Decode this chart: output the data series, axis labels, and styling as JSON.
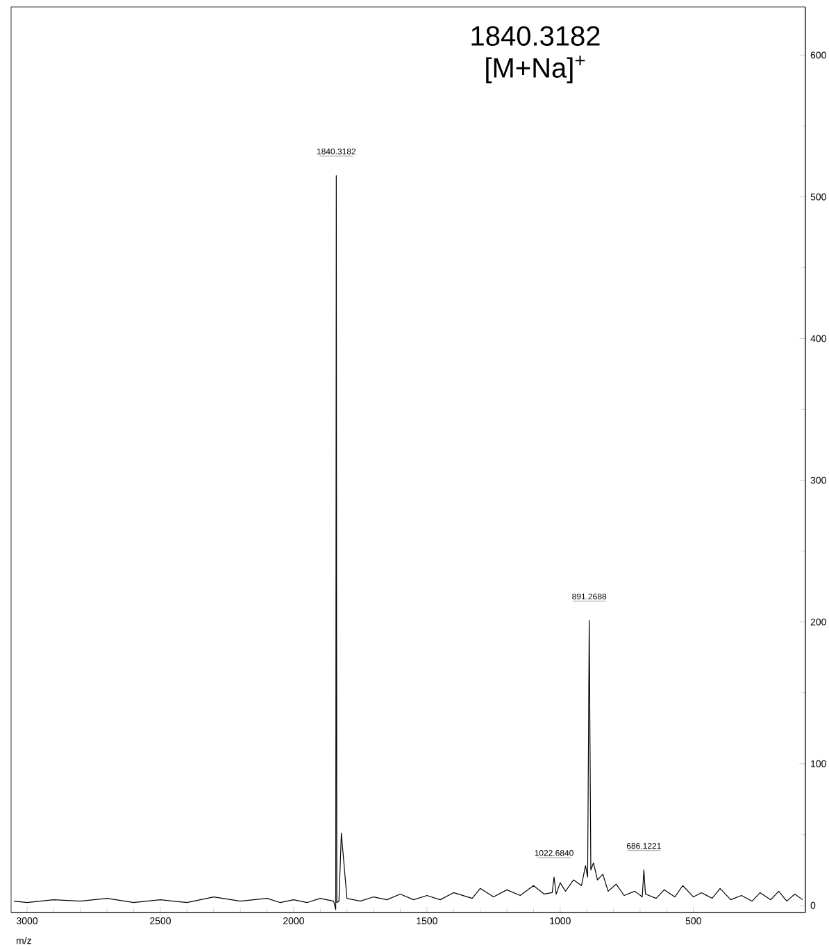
{
  "chart_data": {
    "type": "line",
    "title": "1840.3182",
    "subtitle": "[M+Na]$^{+}$",
    "xlabel": "m/z",
    "x": [
      90,
      120,
      150,
      180,
      210,
      250,
      280,
      320,
      360,
      400,
      430,
      470,
      500,
      540,
      570,
      610,
      640,
      680,
      686,
      692,
      720,
      760,
      790,
      820,
      840,
      860,
      875,
      885,
      891,
      897,
      905,
      920,
      950,
      980,
      1000,
      1015,
      1023,
      1030,
      1060,
      1100,
      1150,
      1200,
      1250,
      1300,
      1330,
      1400,
      1450,
      1500,
      1550,
      1600,
      1650,
      1700,
      1750,
      1800,
      1821,
      1830,
      1838,
      1840,
      1842,
      1850,
      1900,
      1950,
      2000,
      2050,
      2100,
      2200,
      2300,
      2400,
      2500,
      2600,
      2700,
      2800,
      2900,
      3000,
      3050
    ],
    "series": [
      {
        "color": "#000000",
        "values": [
          4,
          8,
          3,
          10,
          4,
          9,
          3,
          7,
          4,
          12,
          5,
          9,
          6,
          14,
          6,
          11,
          5,
          8,
          25,
          6,
          10,
          7,
          15,
          10,
          22,
          18,
          30,
          25,
          201,
          20,
          28,
          14,
          18,
          10,
          16,
          8,
          20,
          9,
          8,
          14,
          7,
          11,
          6,
          12,
          5,
          9,
          4,
          7,
          4,
          8,
          4,
          6,
          3,
          5,
          51,
          3,
          2,
          515,
          -3,
          3,
          5,
          2,
          4,
          2,
          5,
          3,
          6,
          2,
          4,
          2,
          5,
          3,
          4,
          2,
          3
        ]
      }
    ],
    "annotations": [
      {
        "text": "1840.3182",
        "x": 1840,
        "y": 515
      },
      {
        "text": "891.2688",
        "x": 891,
        "y": 201
      },
      {
        "text": "686.1221",
        "x": 686,
        "y": 25
      },
      {
        "text": "1022.6840",
        "x": 1023,
        "y": 20
      }
    ],
    "xlim": [
      3060,
      80
    ],
    "ylim": [
      -5,
      634
    ],
    "xticks": [
      3000,
      2500,
      2000,
      1500,
      1000,
      500
    ],
    "yticks": [
      0,
      100,
      200,
      300,
      400,
      500,
      600
    ],
    "marker": "none",
    "line_style": "solid"
  }
}
